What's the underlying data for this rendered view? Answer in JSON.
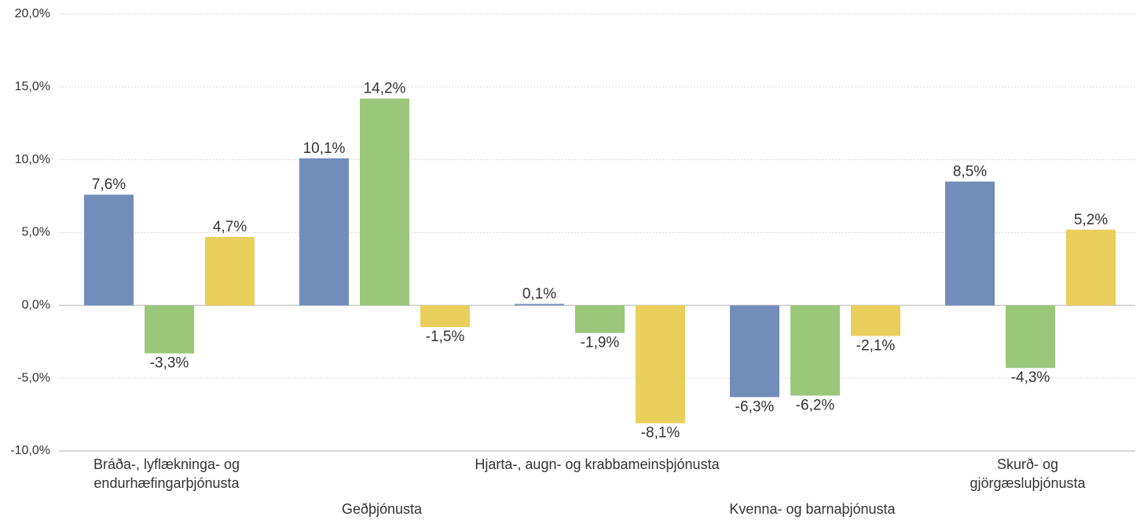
{
  "chart_data": {
    "type": "bar",
    "categories": [
      "Bráða-, lyflækninga- og\nendurhæfingarþjónusta",
      "Geðþjónusta",
      "Hjarta-, augn- og krabbameinsþjónusta",
      "Kvenna- og barnaþjónusta",
      "Skurð- og\ngjörgæsluþjónusta"
    ],
    "series": [
      {
        "color": "#738dba",
        "values": [
          7.6,
          10.1,
          0.1,
          -6.3,
          8.5
        ],
        "value_labels": [
          "7,6%",
          "10,1%",
          "0,1%",
          "-6,3%",
          "8,5%"
        ]
      },
      {
        "color": "#9bc77a",
        "values": [
          -3.3,
          14.2,
          -1.9,
          -6.2,
          -4.3
        ],
        "value_labels": [
          "-3,3%",
          "14,2%",
          "-1,9%",
          "-6,2%",
          "-4,3%"
        ]
      },
      {
        "color": "#e9cf5c",
        "values": [
          4.7,
          -1.5,
          -8.1,
          -2.1,
          5.2
        ],
        "value_labels": [
          "4,7%",
          "-1,5%",
          "-8,1%",
          "-2,1%",
          "5,2%"
        ]
      }
    ],
    "ylim": [
      -10,
      20
    ],
    "yticks": [
      {
        "value": -10,
        "label": "-10,0%"
      },
      {
        "value": -5,
        "label": "-5,0%"
      },
      {
        "value": 0,
        "label": "0,0%"
      },
      {
        "value": 5,
        "label": "5,0%"
      },
      {
        "value": 10,
        "label": "10,0%"
      },
      {
        "value": 15,
        "label": "15,0%"
      },
      {
        "value": 20,
        "label": "20,0%"
      }
    ],
    "grid": true
  }
}
